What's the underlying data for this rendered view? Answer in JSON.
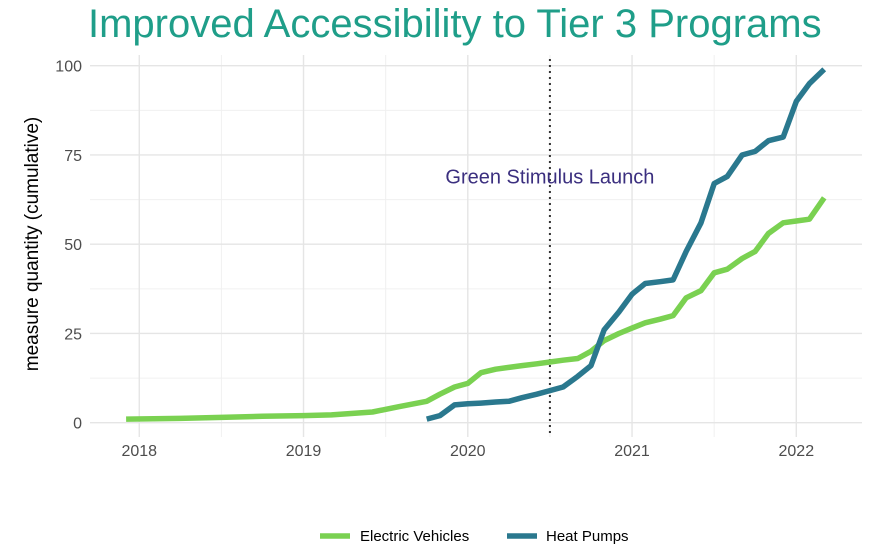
{
  "chart_data": {
    "type": "line",
    "title": "Improved Accessibility to Tier 3 Programs",
    "xlabel": "",
    "ylabel": "measure quantity (cumulative)",
    "xlim": [
      2017.7,
      2022.4
    ],
    "ylim": [
      -4,
      103
    ],
    "x_ticks": [
      2018,
      2019,
      2020,
      2021,
      2022
    ],
    "y_ticks": [
      0,
      25,
      50,
      75,
      100
    ],
    "grid": true,
    "legend_position": "bottom",
    "annotations": [
      {
        "type": "vline",
        "x": 2020.5,
        "style": "dotted"
      },
      {
        "type": "text",
        "text": "Green Stimulus Launch",
        "x": 2020.5,
        "y": 69
      }
    ],
    "series": [
      {
        "name": "Electric Vehicles",
        "color": "#7ad151",
        "x": [
          2017.92,
          2018.25,
          2018.5,
          2018.75,
          2019.0,
          2019.17,
          2019.42,
          2019.58,
          2019.75,
          2019.83,
          2019.92,
          2020.0,
          2020.08,
          2020.17,
          2020.25,
          2020.33,
          2020.42,
          2020.5,
          2020.58,
          2020.67,
          2020.75,
          2020.83,
          2020.92,
          2021.0,
          2021.08,
          2021.17,
          2021.25,
          2021.33,
          2021.42,
          2021.5,
          2021.58,
          2021.67,
          2021.75,
          2021.83,
          2021.92,
          2022.0,
          2022.08,
          2022.17
        ],
        "values": [
          1,
          1.2,
          1.5,
          1.8,
          2,
          2.2,
          3,
          4.5,
          6,
          8,
          10,
          11,
          14,
          15,
          15.5,
          16,
          16.5,
          17,
          17.5,
          18,
          20,
          23,
          25,
          26.5,
          28,
          29,
          30,
          35,
          37,
          42,
          43,
          46,
          48,
          53,
          56,
          56.5,
          57,
          63
        ]
      },
      {
        "name": "Heat Pumps",
        "color": "#2a788e",
        "x": [
          2019.75,
          2019.83,
          2019.92,
          2020.0,
          2020.08,
          2020.17,
          2020.25,
          2020.33,
          2020.42,
          2020.5,
          2020.58,
          2020.67,
          2020.75,
          2020.83,
          2020.92,
          2021.0,
          2021.08,
          2021.17,
          2021.25,
          2021.33,
          2021.42,
          2021.5,
          2021.58,
          2021.67,
          2021.75,
          2021.83,
          2021.92,
          2022.0,
          2022.08,
          2022.17
        ],
        "values": [
          1,
          2,
          5,
          5.3,
          5.5,
          5.8,
          6,
          7,
          8,
          9,
          10,
          13,
          16,
          26,
          31,
          36,
          39,
          39.5,
          40,
          48,
          56,
          67,
          69,
          75,
          76,
          79,
          80,
          90,
          95,
          99
        ]
      }
    ]
  }
}
